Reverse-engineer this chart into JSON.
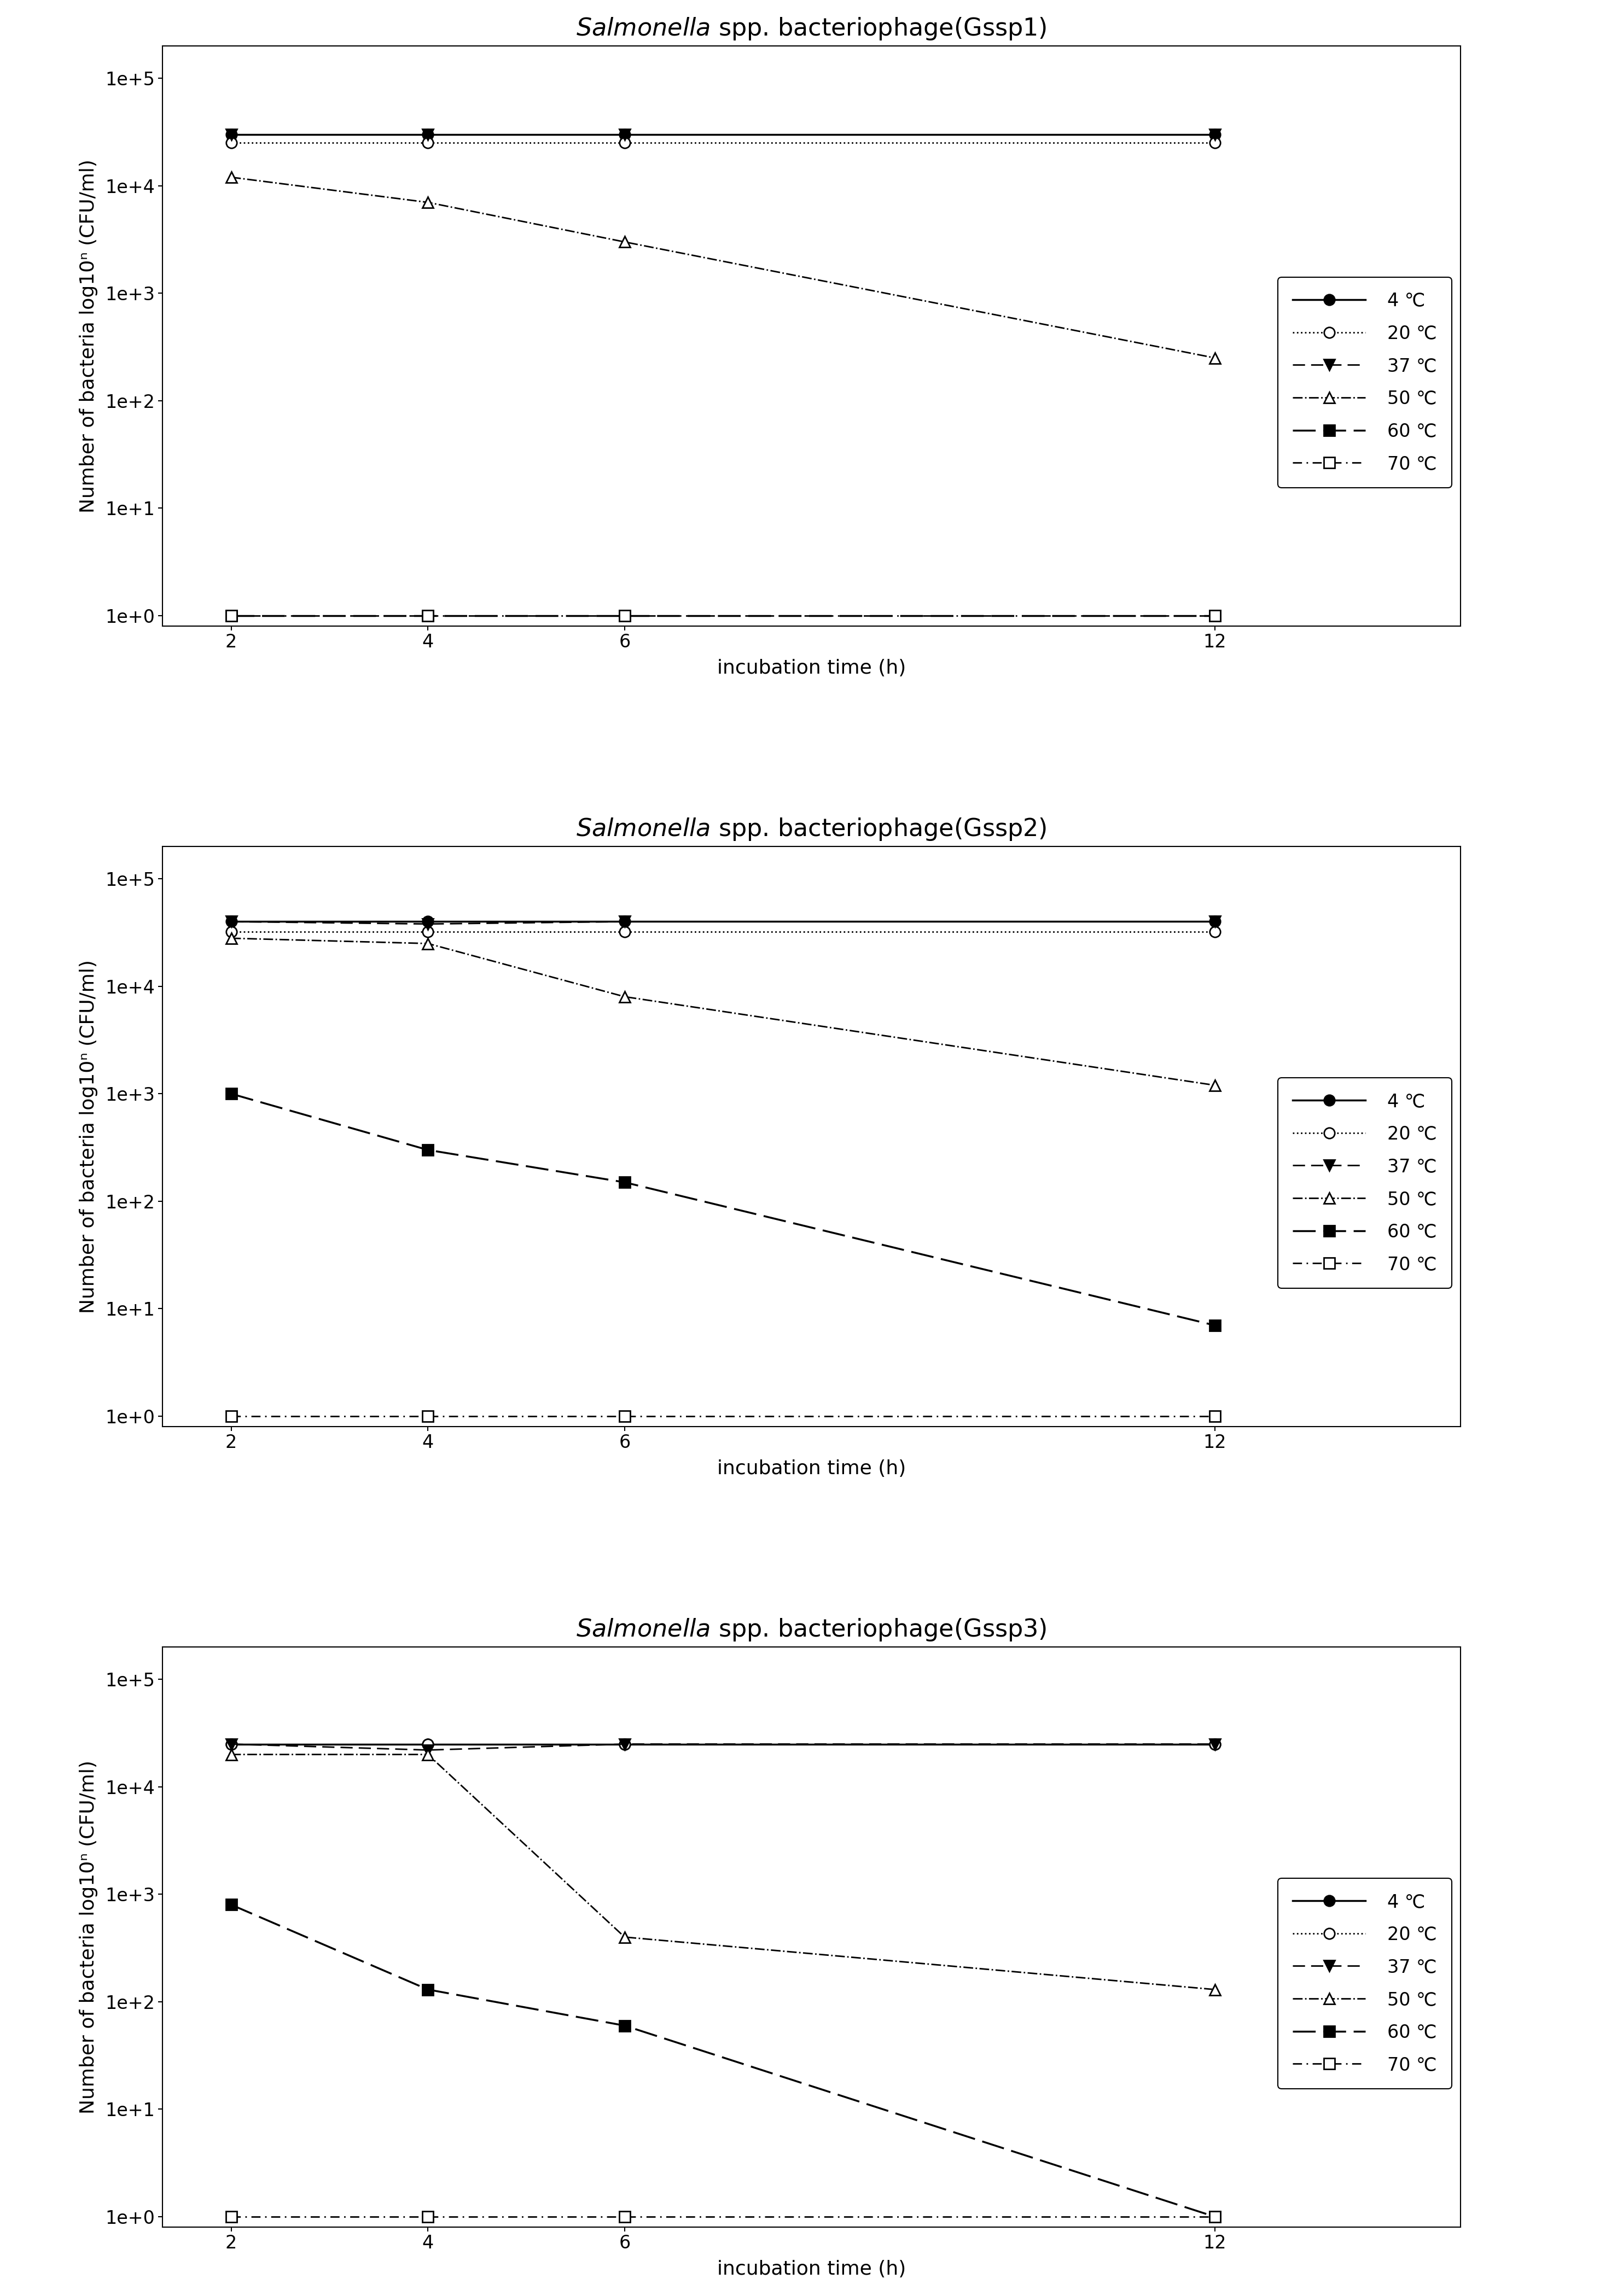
{
  "x": [
    2,
    4,
    6,
    12
  ],
  "charts": [
    {
      "title_rest": " spp. bacteriophage(Gssp1)",
      "series": {
        "4C": [
          30000,
          30000,
          30000,
          30000
        ],
        "20C": [
          25000,
          25000,
          25000,
          25000
        ],
        "37C": [
          30000,
          30000,
          30000,
          30000
        ],
        "50C": [
          12000,
          7000,
          3000,
          250
        ],
        "60C": [
          1,
          1,
          1,
          1
        ],
        "70C": [
          1,
          1,
          1,
          1
        ]
      }
    },
    {
      "title_rest": " spp. bacteriophage(Gssp2)",
      "series": {
        "4C": [
          40000,
          40000,
          40000,
          40000
        ],
        "20C": [
          32000,
          32000,
          32000,
          32000
        ],
        "37C": [
          40000,
          38000,
          40000,
          40000
        ],
        "50C": [
          28000,
          25000,
          8000,
          1200
        ],
        "60C": [
          1000,
          300,
          150,
          7
        ],
        "70C": [
          1,
          1,
          1,
          1
        ]
      }
    },
    {
      "title_rest": " spp. bacteriophage(Gssp3)",
      "series": {
        "4C": [
          25000,
          25000,
          25000,
          25000
        ],
        "20C": [
          25000,
          25000,
          25000,
          25000
        ],
        "37C": [
          25000,
          22000,
          25000,
          25000
        ],
        "50C": [
          20000,
          20000,
          400,
          130
        ],
        "60C": [
          800,
          130,
          60,
          1
        ],
        "70C": [
          1,
          1,
          1,
          1
        ]
      }
    }
  ],
  "line_styles": {
    "4C": {
      "linestyle": "-",
      "marker": "o",
      "markerfacecolor": "black",
      "markersize": 14,
      "linewidth": 2.5,
      "color": "black",
      "dashes": null
    },
    "20C": {
      "linestyle": ":",
      "marker": "o",
      "markerfacecolor": "white",
      "markersize": 14,
      "linewidth": 2.0,
      "color": "black",
      "dashes": null
    },
    "37C": {
      "linestyle": "--",
      "marker": "v",
      "markerfacecolor": "black",
      "markersize": 14,
      "linewidth": 2.0,
      "color": "black",
      "dashes": [
        8,
        4
      ]
    },
    "50C": {
      "linestyle": "-.",
      "marker": "^",
      "markerfacecolor": "white",
      "markersize": 14,
      "linewidth": 2.0,
      "color": "black",
      "dashes": null
    },
    "60C": {
      "linestyle": "--",
      "marker": "s",
      "markerfacecolor": "black",
      "markersize": 14,
      "linewidth": 2.5,
      "color": "black",
      "dashes": [
        12,
        4
      ]
    },
    "70C": {
      "linestyle": "-.",
      "marker": "s",
      "markerfacecolor": "white",
      "markersize": 14,
      "linewidth": 2.0,
      "color": "black",
      "dashes": [
        6,
        3,
        1,
        3
      ]
    }
  },
  "legend_labels": [
    "4 ℃",
    "20 ℃",
    "37 ℃",
    "50 ℃",
    "60 ℃",
    "70 ℃"
  ],
  "xlabel": "incubation time (h)",
  "ylabel": "Number of bacteria log10ⁿ (CFU/ml)",
  "yticks": [
    1,
    10,
    100,
    1000,
    10000,
    100000
  ],
  "ytick_labels": [
    "1e+0",
    "1e+1",
    "1e+2",
    "1e+3",
    "1e+4",
    "1e+5"
  ],
  "xticks": [
    2,
    4,
    6,
    12
  ],
  "background_color": "#ffffff",
  "title_fontsize": 32,
  "label_fontsize": 26,
  "tick_fontsize": 24,
  "legend_fontsize": 24
}
